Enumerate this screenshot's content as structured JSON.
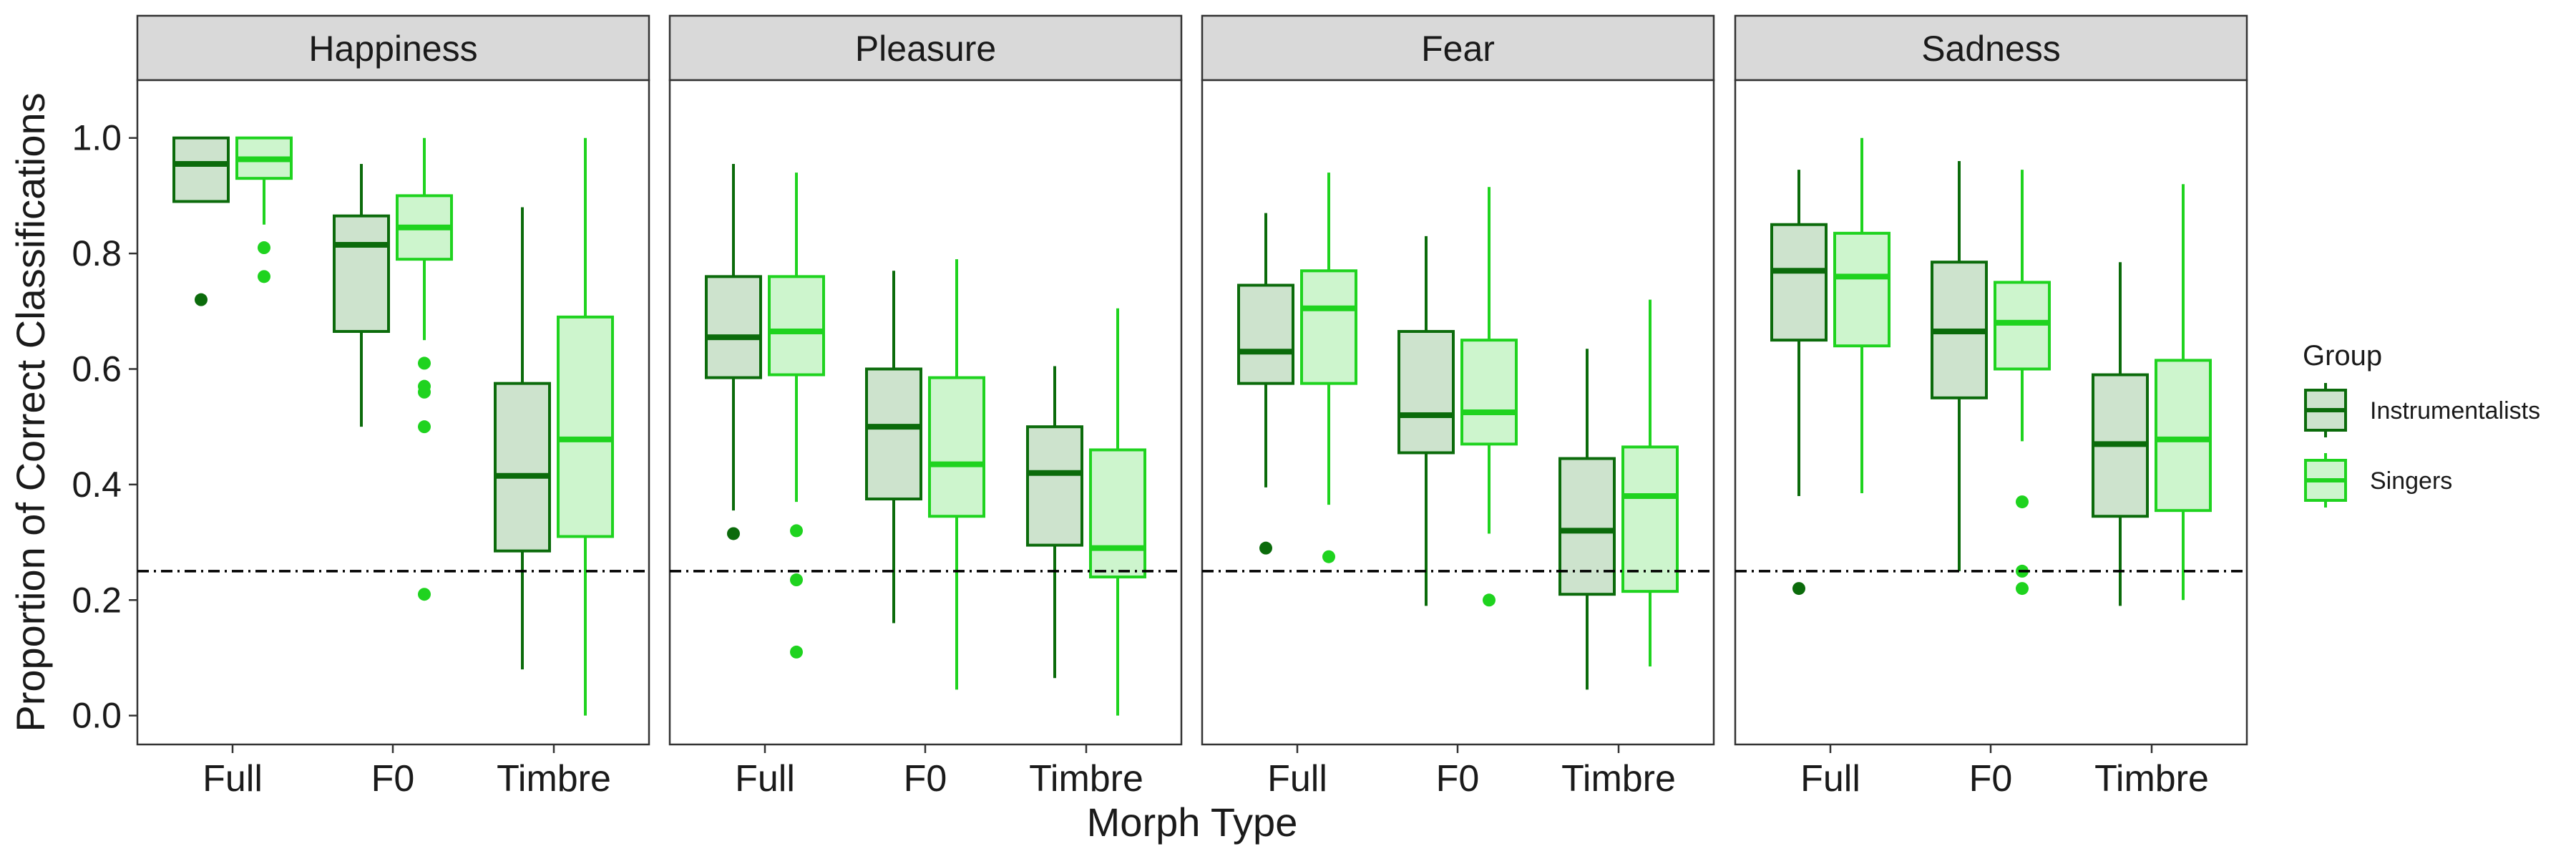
{
  "chart_data": {
    "type": "boxplot",
    "ylabel": "Proportion of Correct Classifications",
    "xlabel": "Morph Type",
    "ylim": [
      -0.05,
      1.1
    ],
    "yticks": [
      "0.0",
      "0.2",
      "0.4",
      "0.6",
      "0.8",
      "1.0"
    ],
    "reference_line": 0.25,
    "categories": [
      "Full",
      "F0",
      "Timbre"
    ],
    "legend": {
      "title": "Group",
      "position": "right",
      "entries": [
        "Instrumentalists",
        "Singers"
      ]
    },
    "colors": {
      "Instrumentalists": {
        "stroke": "#0b6b0b",
        "fill": "#cde3cd"
      },
      "Singers": {
        "stroke": "#1fd31f",
        "fill": "#cdf5cd"
      },
      "strip": "#d9d9d9",
      "border": "#333333",
      "text": "#1a1a1a"
    },
    "panels": [
      {
        "title": "Happiness",
        "boxes": [
          {
            "category": "Full",
            "group": "Instrumentalists",
            "whisker_low": 0.89,
            "q1": 0.89,
            "median": 0.955,
            "q3": 1.0,
            "whisker_high": 1.0,
            "outliers": [
              0.72
            ]
          },
          {
            "category": "Full",
            "group": "Singers",
            "whisker_low": 0.85,
            "q1": 0.93,
            "median": 0.963,
            "q3": 1.0,
            "whisker_high": 1.0,
            "outliers": [
              0.81,
              0.76
            ]
          },
          {
            "category": "F0",
            "group": "Instrumentalists",
            "whisker_low": 0.5,
            "q1": 0.665,
            "median": 0.815,
            "q3": 0.865,
            "whisker_high": 0.955,
            "outliers": []
          },
          {
            "category": "F0",
            "group": "Singers",
            "whisker_low": 0.65,
            "q1": 0.79,
            "median": 0.845,
            "q3": 0.9,
            "whisker_high": 1.0,
            "outliers": [
              0.61,
              0.57,
              0.56,
              0.5,
              0.21
            ]
          },
          {
            "category": "Timbre",
            "group": "Instrumentalists",
            "whisker_low": 0.08,
            "q1": 0.285,
            "median": 0.415,
            "q3": 0.575,
            "whisker_high": 0.88,
            "outliers": []
          },
          {
            "category": "Timbre",
            "group": "Singers",
            "whisker_low": 0.0,
            "q1": 0.31,
            "median": 0.478,
            "q3": 0.69,
            "whisker_high": 1.0,
            "outliers": []
          }
        ]
      },
      {
        "title": "Pleasure",
        "boxes": [
          {
            "category": "Full",
            "group": "Instrumentalists",
            "whisker_low": 0.355,
            "q1": 0.585,
            "median": 0.655,
            "q3": 0.76,
            "whisker_high": 0.955,
            "outliers": [
              0.315
            ]
          },
          {
            "category": "Full",
            "group": "Singers",
            "whisker_low": 0.37,
            "q1": 0.59,
            "median": 0.665,
            "q3": 0.76,
            "whisker_high": 0.94,
            "outliers": [
              0.32,
              0.235,
              0.11
            ]
          },
          {
            "category": "F0",
            "group": "Instrumentalists",
            "whisker_low": 0.16,
            "q1": 0.375,
            "median": 0.5,
            "q3": 0.6,
            "whisker_high": 0.77,
            "outliers": []
          },
          {
            "category": "F0",
            "group": "Singers",
            "whisker_low": 0.045,
            "q1": 0.345,
            "median": 0.435,
            "q3": 0.585,
            "whisker_high": 0.79,
            "outliers": []
          },
          {
            "category": "Timbre",
            "group": "Instrumentalists",
            "whisker_low": 0.065,
            "q1": 0.295,
            "median": 0.42,
            "q3": 0.5,
            "whisker_high": 0.605,
            "outliers": []
          },
          {
            "category": "Timbre",
            "group": "Singers",
            "whisker_low": 0.0,
            "q1": 0.24,
            "median": 0.29,
            "q3": 0.46,
            "whisker_high": 0.705,
            "outliers": []
          }
        ]
      },
      {
        "title": "Fear",
        "boxes": [
          {
            "category": "Full",
            "group": "Instrumentalists",
            "whisker_low": 0.395,
            "q1": 0.575,
            "median": 0.63,
            "q3": 0.745,
            "whisker_high": 0.87,
            "outliers": [
              0.29
            ]
          },
          {
            "category": "Full",
            "group": "Singers",
            "whisker_low": 0.365,
            "q1": 0.575,
            "median": 0.705,
            "q3": 0.77,
            "whisker_high": 0.94,
            "outliers": [
              0.275
            ]
          },
          {
            "category": "F0",
            "group": "Instrumentalists",
            "whisker_low": 0.19,
            "q1": 0.455,
            "median": 0.52,
            "q3": 0.665,
            "whisker_high": 0.83,
            "outliers": []
          },
          {
            "category": "F0",
            "group": "Singers",
            "whisker_low": 0.315,
            "q1": 0.47,
            "median": 0.525,
            "q3": 0.65,
            "whisker_high": 0.915,
            "outliers": [
              0.2
            ]
          },
          {
            "category": "Timbre",
            "group": "Instrumentalists",
            "whisker_low": 0.045,
            "q1": 0.21,
            "median": 0.32,
            "q3": 0.445,
            "whisker_high": 0.635,
            "outliers": []
          },
          {
            "category": "Timbre",
            "group": "Singers",
            "whisker_low": 0.085,
            "q1": 0.215,
            "median": 0.38,
            "q3": 0.465,
            "whisker_high": 0.72,
            "outliers": []
          }
        ]
      },
      {
        "title": "Sadness",
        "boxes": [
          {
            "category": "Full",
            "group": "Instrumentalists",
            "whisker_low": 0.38,
            "q1": 0.65,
            "median": 0.77,
            "q3": 0.85,
            "whisker_high": 0.945,
            "outliers": [
              0.22
            ]
          },
          {
            "category": "Full",
            "group": "Singers",
            "whisker_low": 0.385,
            "q1": 0.64,
            "median": 0.76,
            "q3": 0.835,
            "whisker_high": 1.0,
            "outliers": []
          },
          {
            "category": "F0",
            "group": "Instrumentalists",
            "whisker_low": 0.25,
            "q1": 0.55,
            "median": 0.665,
            "q3": 0.785,
            "whisker_high": 0.96,
            "outliers": []
          },
          {
            "category": "F0",
            "group": "Singers",
            "whisker_low": 0.475,
            "q1": 0.6,
            "median": 0.68,
            "q3": 0.75,
            "whisker_high": 0.945,
            "outliers": [
              0.37,
              0.25,
              0.22
            ]
          },
          {
            "category": "Timbre",
            "group": "Instrumentalists",
            "whisker_low": 0.19,
            "q1": 0.345,
            "median": 0.47,
            "q3": 0.59,
            "whisker_high": 0.785,
            "outliers": []
          },
          {
            "category": "Timbre",
            "group": "Singers",
            "whisker_low": 0.2,
            "q1": 0.355,
            "median": 0.478,
            "q3": 0.615,
            "whisker_high": 0.92,
            "outliers": []
          }
        ]
      }
    ]
  }
}
